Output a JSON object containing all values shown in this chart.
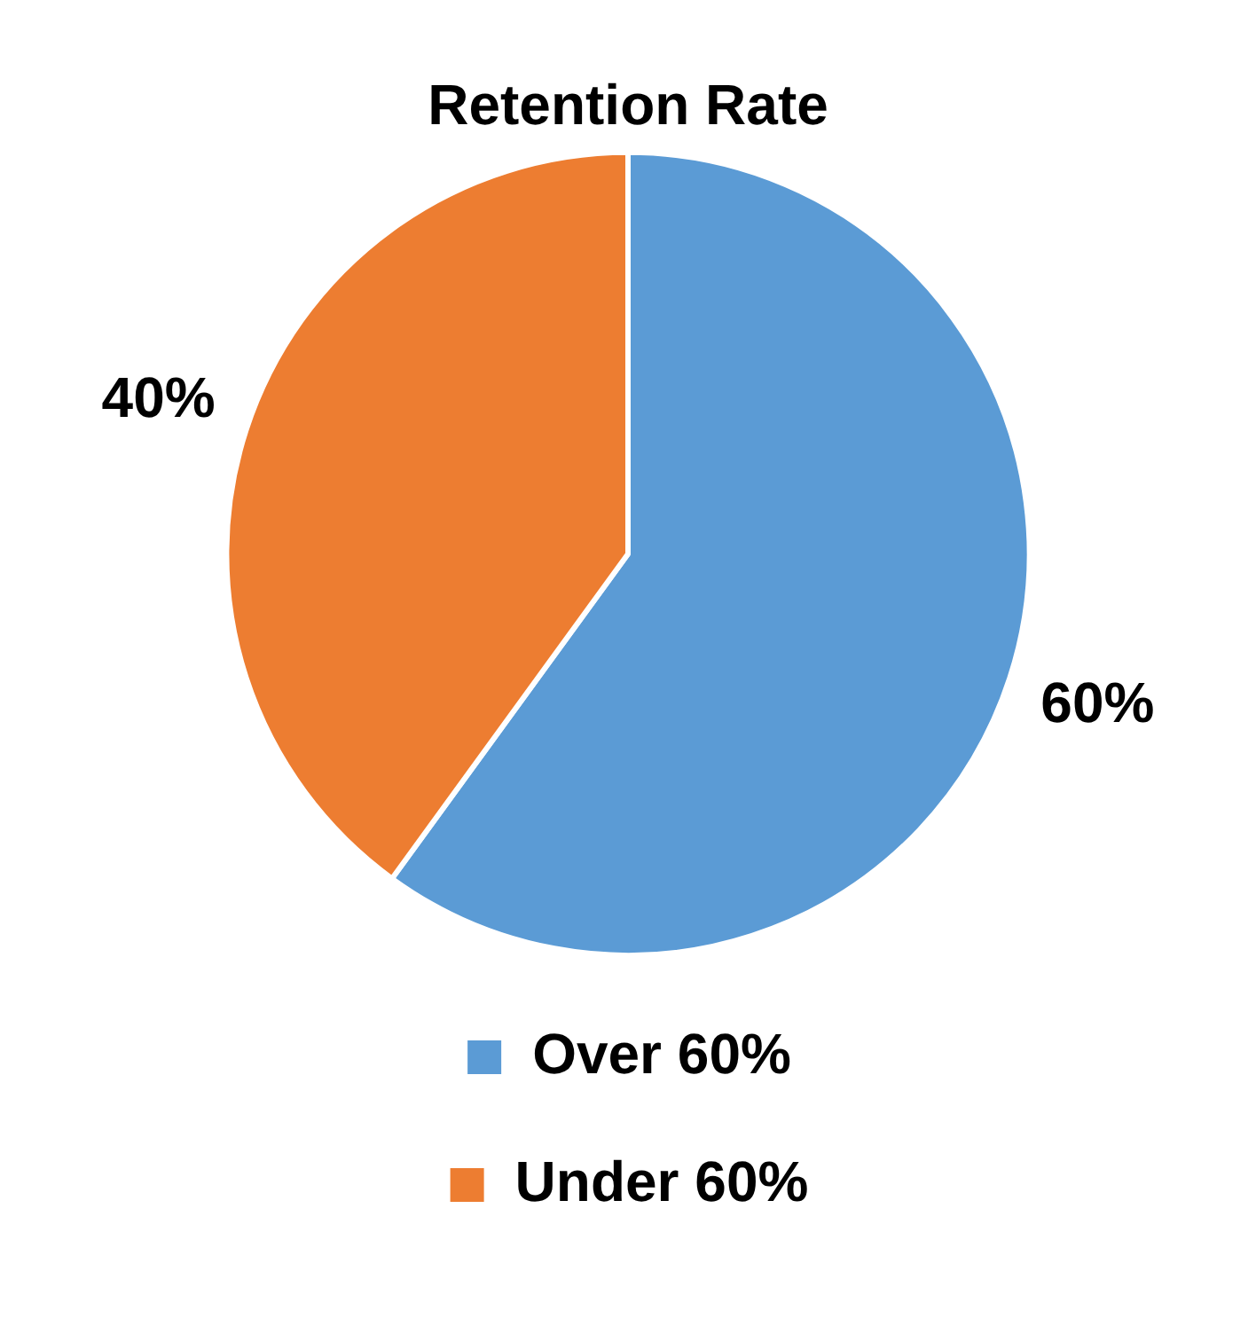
{
  "chart_data": {
    "type": "pie",
    "title": "Retention Rate",
    "categories": [
      "Over 60%",
      "Under 60%"
    ],
    "values": [
      60,
      40
    ],
    "colors": [
      "#5b9bd5",
      "#ed7d31"
    ],
    "legend": "bottom",
    "data_labels": true,
    "value_labels": [
      "60%",
      "40%"
    ]
  }
}
